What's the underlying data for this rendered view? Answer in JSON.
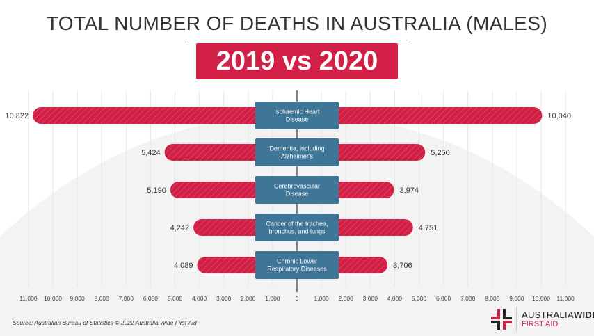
{
  "header": {
    "title": "TOTAL NUMBER OF DEATHS IN AUSTRALIA (MALES)",
    "badge": "2019 vs 2020"
  },
  "footer": {
    "source": "Source: Australian Bureau of Statistics © 2022 Australia Wide First Aid",
    "logo_part1": "AUSTRALIA",
    "logo_part2": "WIDE",
    "logo_line2": "FIRST AID"
  },
  "colors": {
    "bar": "#d11f46",
    "label_box": "#3f7597",
    "title": "#333333"
  },
  "chart_data": {
    "type": "bar",
    "orientation": "horizontal-butterfly",
    "categories": [
      "Ischaemic Heart Disease",
      "Dementia, including Alzheimer's",
      "Cerebrovascular Disease",
      "Cancer of the trachea, bronchus, and lungs",
      "Chronic Lower Respiratory Diseases"
    ],
    "series": [
      {
        "name": "2019",
        "side": "left",
        "values": [
          10822,
          5424,
          5190,
          4242,
          4089
        ],
        "labels": [
          "10,822",
          "5,424",
          "5,190",
          "4,242",
          "4,089"
        ]
      },
      {
        "name": "2020",
        "side": "right",
        "values": [
          10040,
          5250,
          3974,
          4751,
          3706
        ],
        "labels": [
          "10,040",
          "5,250",
          "3,974",
          "4,751",
          "3,706"
        ]
      }
    ],
    "xlim": [
      -11000,
      11000
    ],
    "ticks": [
      -11000,
      -10000,
      -9000,
      -8000,
      -7000,
      -6000,
      -5000,
      -4000,
      -3000,
      -2000,
      -1000,
      0,
      1000,
      2000,
      3000,
      4000,
      5000,
      6000,
      7000,
      8000,
      9000,
      10000,
      11000
    ],
    "tick_labels": [
      "11,000",
      "10,000",
      "9,000",
      "8,000",
      "7,000",
      "6,000",
      "5,000",
      "4,000",
      "3,000",
      "2,000",
      "1,000",
      "0",
      "1,000",
      "2,000",
      "3,000",
      "4,000",
      "5,000",
      "6,000",
      "7,000",
      "8,000",
      "9,000",
      "10,000",
      "11,000"
    ],
    "grid": true
  }
}
